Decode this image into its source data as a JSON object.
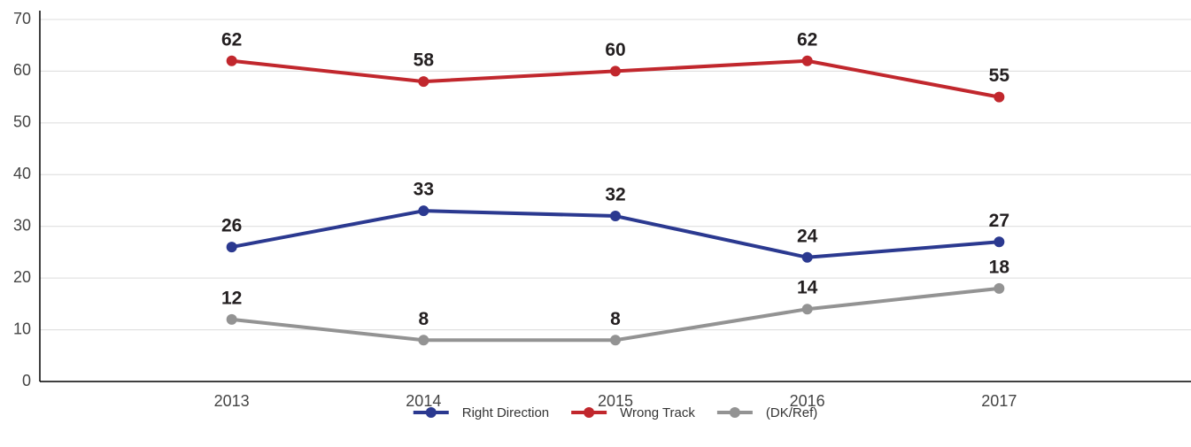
{
  "chart_data": {
    "type": "line",
    "categories": [
      "2013",
      "2014",
      "2015",
      "2016",
      "2017"
    ],
    "series": [
      {
        "name": "Right Direction",
        "color": "#2b3990",
        "values": [
          26,
          33,
          32,
          24,
          27
        ]
      },
      {
        "name": "Wrong Track",
        "color": "#c1272d",
        "values": [
          62,
          58,
          60,
          62,
          55
        ]
      },
      {
        "name": "(DK/Ref)",
        "color": "#939393",
        "values": [
          12,
          8,
          8,
          14,
          18
        ]
      }
    ],
    "ylim": [
      0,
      70
    ],
    "yticks": [
      0,
      10,
      20,
      30,
      40,
      50,
      60,
      70
    ],
    "grid": true,
    "legend": "bottom"
  }
}
